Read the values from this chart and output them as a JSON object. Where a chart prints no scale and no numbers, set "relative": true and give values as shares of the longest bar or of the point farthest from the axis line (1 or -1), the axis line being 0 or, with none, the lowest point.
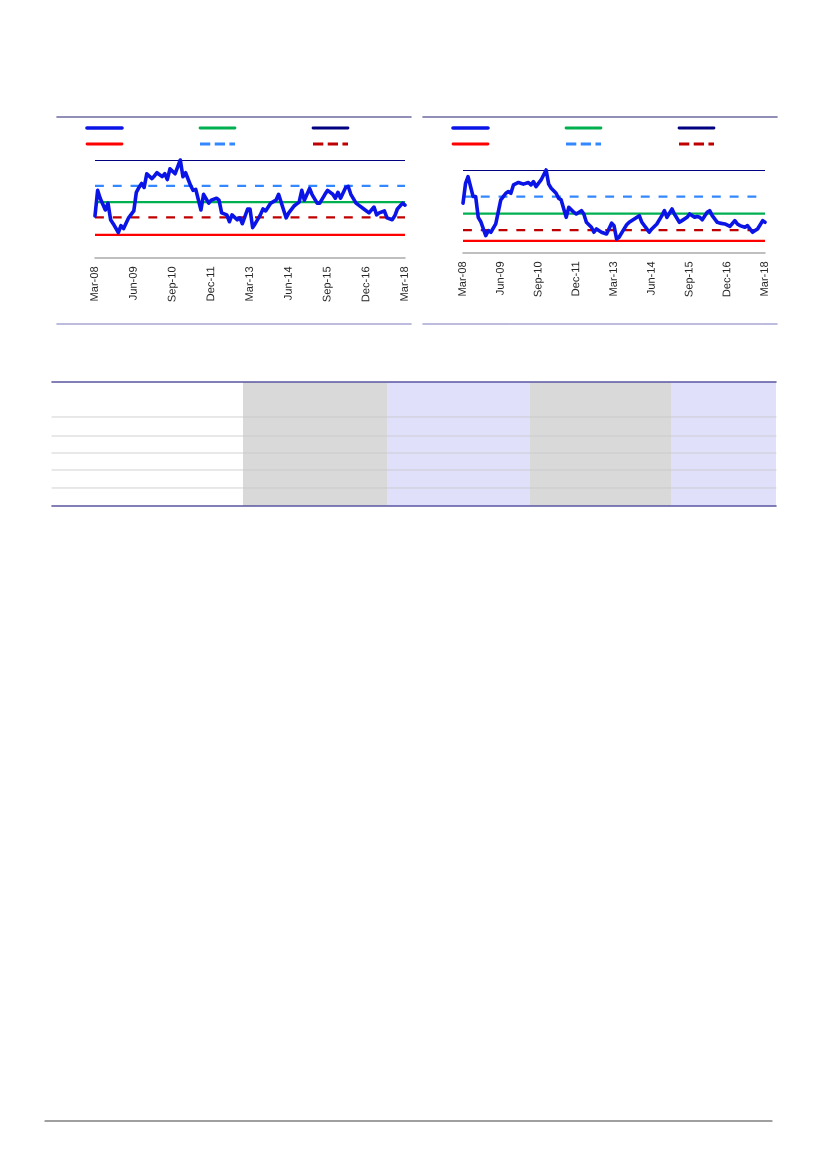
{
  "chart_data": [
    {
      "type": "line",
      "relative": true,
      "line_style": "solid",
      "marker": "none",
      "grid": false,
      "xlim": [
        "2008-03",
        "2018-03"
      ],
      "xticks": [
        {
          "value": "2008-03",
          "label": "Mar-08"
        },
        {
          "value": "2009-06",
          "label": "Jun-09"
        },
        {
          "value": "2010-09",
          "label": "Sep-10"
        },
        {
          "value": "2011-12",
          "label": "Dec-11"
        },
        {
          "value": "2013-03",
          "label": "Mar-13"
        },
        {
          "value": "2014-06",
          "label": "Jun-14"
        },
        {
          "value": "2015-09",
          "label": "Sep-15"
        },
        {
          "value": "2016-12",
          "label": "Dec-16"
        },
        {
          "value": "2018-03",
          "label": "Mar-18"
        }
      ],
      "series": [
        {
          "color": "#0a14e6",
          "x": [
            "2008-03",
            "2008-04",
            "2008-05",
            "2008-07",
            "2008-08",
            "2008-09",
            "2008-10",
            "2008-12",
            "2009-01",
            "2009-02",
            "2009-04",
            "2009-06",
            "2009-07",
            "2009-08",
            "2009-09",
            "2009-10",
            "2009-11",
            "2010-01",
            "2010-02",
            "2010-03",
            "2010-05",
            "2010-06",
            "2010-07",
            "2010-08",
            "2010-10",
            "2010-12",
            "2011-01",
            "2011-02",
            "2011-04",
            "2011-05",
            "2011-06",
            "2011-08",
            "2011-09",
            "2011-11",
            "2011-12",
            "2012-02",
            "2012-03",
            "2012-04",
            "2012-06",
            "2012-07",
            "2012-08",
            "2012-10",
            "2012-11",
            "2012-12",
            "2013-02",
            "2013-03",
            "2013-04",
            "2013-05",
            "2013-07",
            "2013-08",
            "2013-09",
            "2013-11",
            "2014-01",
            "2014-02",
            "2014-04",
            "2014-05",
            "2014-06",
            "2014-08",
            "2014-10",
            "2014-11",
            "2014-12",
            "2015-02",
            "2015-03",
            "2015-05",
            "2015-06",
            "2015-08",
            "2015-09",
            "2015-11",
            "2015-12",
            "2016-01",
            "2016-02",
            "2016-04",
            "2016-05",
            "2016-06",
            "2016-08",
            "2016-09",
            "2016-11",
            "2017-01",
            "2017-03",
            "2017-04",
            "2017-05",
            "2017-07",
            "2017-08",
            "2017-10",
            "2017-11",
            "2017-12",
            "2018-02",
            "2018-03"
          ],
          "values": [
            0.43,
            0.69,
            0.61,
            0.49,
            0.56,
            0.39,
            0.35,
            0.26,
            0.33,
            0.3,
            0.41,
            0.48,
            0.67,
            0.72,
            0.76,
            0.72,
            0.86,
            0.81,
            0.84,
            0.87,
            0.83,
            0.86,
            0.8,
            0.91,
            0.86,
            1.0,
            0.83,
            0.87,
            0.74,
            0.69,
            0.7,
            0.49,
            0.65,
            0.56,
            0.59,
            0.61,
            0.59,
            0.46,
            0.44,
            0.37,
            0.44,
            0.39,
            0.41,
            0.35,
            0.5,
            0.5,
            0.31,
            0.35,
            0.44,
            0.5,
            0.48,
            0.56,
            0.59,
            0.65,
            0.49,
            0.41,
            0.46,
            0.53,
            0.57,
            0.69,
            0.59,
            0.71,
            0.65,
            0.56,
            0.56,
            0.65,
            0.69,
            0.65,
            0.61,
            0.67,
            0.61,
            0.72,
            0.73,
            0.65,
            0.56,
            0.54,
            0.5,
            0.46,
            0.52,
            0.44,
            0.46,
            0.48,
            0.41,
            0.39,
            0.43,
            0.5,
            0.56,
            0.54
          ]
        }
      ],
      "ref_lines": [
        {
          "axis": "y",
          "value": 0.57,
          "color": "#00b050",
          "line_style": "solid"
        },
        {
          "axis": "y",
          "value": 1.0,
          "color": "#000080",
          "line_style": "solid"
        },
        {
          "axis": "y",
          "value": 0.237,
          "color": "#ff0000",
          "line_style": "solid"
        },
        {
          "axis": "y",
          "value": 0.737,
          "color": "#3388ff",
          "line_style": "dashed"
        },
        {
          "axis": "y",
          "value": 0.415,
          "color": "#c00000",
          "line_style": "dashed"
        }
      ]
    },
    {
      "type": "line",
      "relative": true,
      "line_style": "solid",
      "marker": "none",
      "grid": false,
      "xlim": [
        "2008-03",
        "2018-03"
      ],
      "xticks": [
        {
          "value": "2008-03",
          "label": "Mar-08"
        },
        {
          "value": "2009-06",
          "label": "Jun-09"
        },
        {
          "value": "2010-09",
          "label": "Sep-10"
        },
        {
          "value": "2011-12",
          "label": "Dec-11"
        },
        {
          "value": "2013-03",
          "label": "Mar-13"
        },
        {
          "value": "2014-06",
          "label": "Jun-14"
        },
        {
          "value": "2015-09",
          "label": "Sep-15"
        },
        {
          "value": "2016-12",
          "label": "Dec-16"
        },
        {
          "value": "2018-03",
          "label": "Mar-18"
        }
      ],
      "series": [
        {
          "color": "#0a14e6",
          "x": [
            "2008-03",
            "2008-04",
            "2008-05",
            "2008-07",
            "2008-08",
            "2008-09",
            "2008-10",
            "2008-12",
            "2009-01",
            "2009-02",
            "2009-04",
            "2009-06",
            "2009-07",
            "2009-08",
            "2009-09",
            "2009-10",
            "2009-11",
            "2010-01",
            "2010-03",
            "2010-05",
            "2010-06",
            "2010-07",
            "2010-08",
            "2010-10",
            "2010-12",
            "2011-01",
            "2011-02",
            "2011-04",
            "2011-05",
            "2011-06",
            "2011-08",
            "2011-09",
            "2011-11",
            "2011-12",
            "2012-02",
            "2012-03",
            "2012-04",
            "2012-06",
            "2012-07",
            "2012-08",
            "2012-10",
            "2012-12",
            "2013-02",
            "2013-03",
            "2013-04",
            "2013-05",
            "2013-07",
            "2013-08",
            "2013-09",
            "2013-11",
            "2014-01",
            "2014-02",
            "2014-04",
            "2014-05",
            "2014-06",
            "2014-08",
            "2014-10",
            "2014-11",
            "2014-12",
            "2015-02",
            "2015-03",
            "2015-05",
            "2015-06",
            "2015-08",
            "2015-09",
            "2015-11",
            "2015-12",
            "2016-01",
            "2016-02",
            "2016-04",
            "2016-05",
            "2016-06",
            "2016-08",
            "2016-09",
            "2016-11",
            "2017-01",
            "2017-03",
            "2017-04",
            "2017-05",
            "2017-07",
            "2017-08",
            "2017-10",
            "2017-11",
            "2017-12",
            "2018-02",
            "2018-03"
          ],
          "values": [
            0.6,
            0.84,
            0.92,
            0.68,
            0.68,
            0.43,
            0.38,
            0.21,
            0.27,
            0.25,
            0.35,
            0.64,
            0.68,
            0.72,
            0.74,
            0.72,
            0.82,
            0.85,
            0.83,
            0.85,
            0.82,
            0.86,
            0.8,
            0.88,
            1.0,
            0.83,
            0.78,
            0.72,
            0.66,
            0.64,
            0.43,
            0.55,
            0.49,
            0.47,
            0.51,
            0.47,
            0.37,
            0.31,
            0.25,
            0.29,
            0.25,
            0.23,
            0.36,
            0.33,
            0.17,
            0.19,
            0.29,
            0.34,
            0.37,
            0.41,
            0.45,
            0.37,
            0.29,
            0.25,
            0.29,
            0.35,
            0.45,
            0.51,
            0.43,
            0.53,
            0.47,
            0.37,
            0.39,
            0.43,
            0.47,
            0.43,
            0.44,
            0.43,
            0.4,
            0.49,
            0.51,
            0.45,
            0.37,
            0.36,
            0.35,
            0.32,
            0.39,
            0.35,
            0.33,
            0.31,
            0.33,
            0.25,
            0.27,
            0.29,
            0.39,
            0.37
          ]
        }
      ],
      "ref_lines": [
        {
          "axis": "y",
          "value": 0.474,
          "color": "#00b050",
          "line_style": "solid"
        },
        {
          "axis": "y",
          "value": 1.0,
          "color": "#000080",
          "line_style": "solid"
        },
        {
          "axis": "y",
          "value": 0.146,
          "color": "#ff0000",
          "line_style": "solid"
        },
        {
          "axis": "y",
          "value": 0.68,
          "color": "#3388ff",
          "line_style": "dashed"
        },
        {
          "axis": "y",
          "value": 0.275,
          "color": "#c00000",
          "line_style": "dashed"
        }
      ]
    }
  ]
}
